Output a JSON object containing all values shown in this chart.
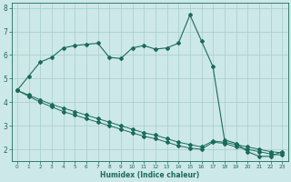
{
  "background_color": "#cde8e8",
  "grid_color": "#a8cccc",
  "line_color": "#1a6b5a",
  "xlabel": "Humidex (Indice chaleur)",
  "xlim": [
    -0.5,
    23.5
  ],
  "ylim": [
    1.5,
    8.2
  ],
  "yticks": [
    2,
    3,
    4,
    5,
    6,
    7,
    8
  ],
  "xticks": [
    0,
    1,
    2,
    3,
    4,
    5,
    6,
    7,
    8,
    9,
    10,
    11,
    12,
    13,
    14,
    15,
    16,
    17,
    18,
    19,
    20,
    21,
    22,
    23
  ],
  "series1_x": [
    0,
    1,
    2,
    3,
    4,
    5,
    6,
    7,
    8,
    9,
    10,
    11,
    12,
    13,
    14,
    15,
    16,
    17,
    18,
    19,
    20,
    21,
    22,
    23
  ],
  "series1_y": [
    4.5,
    5.1,
    5.7,
    5.9,
    6.3,
    6.4,
    6.45,
    6.5,
    5.9,
    5.85,
    6.3,
    6.4,
    6.25,
    6.3,
    6.5,
    7.7,
    6.6,
    5.5,
    2.4,
    2.25,
    1.9,
    1.7,
    1.7,
    1.9
  ],
  "series2_x": [
    0,
    1,
    2,
    3,
    4,
    5,
    6,
    7,
    8,
    9,
    10,
    11,
    12,
    13,
    14,
    15,
    16,
    17,
    18,
    19,
    20,
    21,
    22,
    23
  ],
  "series2_y": [
    4.5,
    4.3,
    4.1,
    3.9,
    3.75,
    3.6,
    3.45,
    3.3,
    3.15,
    3.0,
    2.85,
    2.7,
    2.6,
    2.45,
    2.3,
    2.2,
    2.1,
    2.35,
    2.3,
    2.2,
    2.1,
    2.0,
    1.9,
    1.85
  ],
  "series3_x": [
    0,
    1,
    2,
    3,
    4,
    5,
    6,
    7,
    8,
    9,
    10,
    11,
    12,
    13,
    14,
    15,
    16,
    17,
    18,
    19,
    20,
    21,
    22,
    23
  ],
  "series3_y": [
    4.5,
    4.25,
    4.0,
    3.8,
    3.6,
    3.45,
    3.3,
    3.15,
    3.0,
    2.85,
    2.7,
    2.55,
    2.45,
    2.3,
    2.15,
    2.05,
    2.0,
    2.3,
    2.25,
    2.1,
    2.0,
    1.9,
    1.8,
    1.75
  ]
}
